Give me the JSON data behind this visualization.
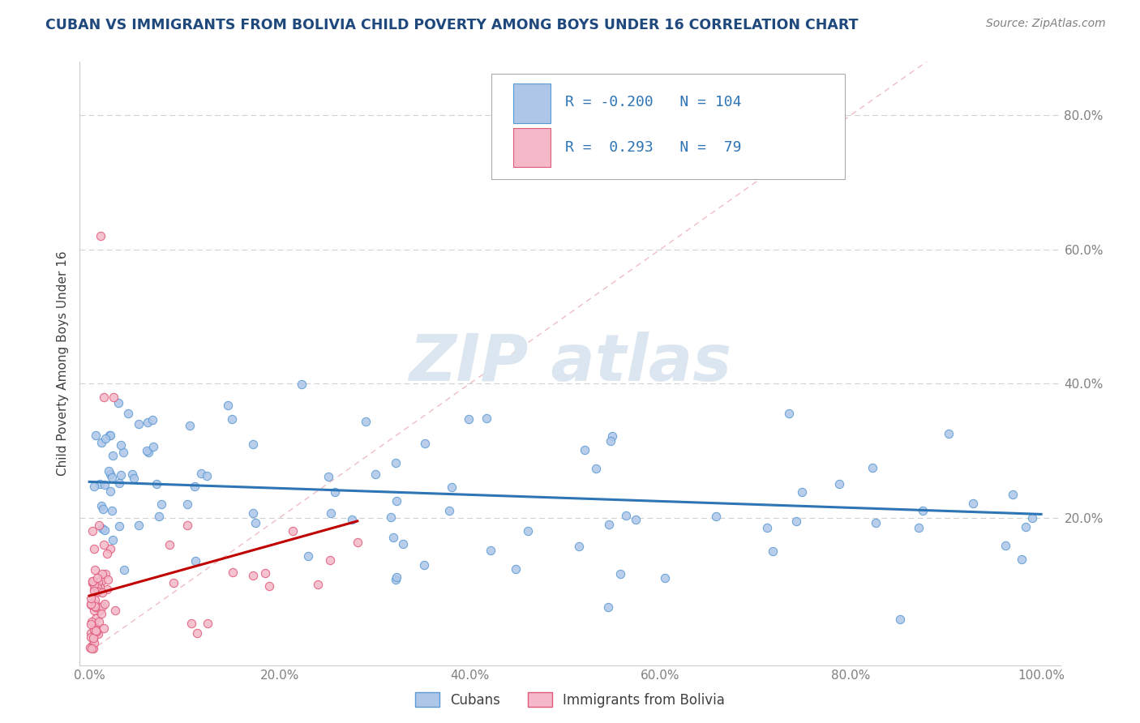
{
  "title": "CUBAN VS IMMIGRANTS FROM BOLIVIA CHILD POVERTY AMONG BOYS UNDER 16 CORRELATION CHART",
  "source": "Source: ZipAtlas.com",
  "ylabel": "Child Poverty Among Boys Under 16",
  "xlim": [
    -0.01,
    1.02
  ],
  "ylim": [
    -0.02,
    0.88
  ],
  "x_tick_labels": [
    "0.0%",
    "20.0%",
    "40.0%",
    "60.0%",
    "80.0%",
    "100.0%"
  ],
  "x_tick_vals": [
    0,
    0.2,
    0.4,
    0.6,
    0.8,
    1.0
  ],
  "y_tick_labels": [
    "20.0%",
    "40.0%",
    "60.0%",
    "80.0%"
  ],
  "y_tick_vals": [
    0.2,
    0.4,
    0.6,
    0.8
  ],
  "legend_label1": "Cubans",
  "legend_label2": "Immigrants from Bolivia",
  "legend_r1": "-0.200",
  "legend_n1": "104",
  "legend_r2": " 0.293",
  "legend_n2": " 79",
  "color_cubans_fill": "#aec6e8",
  "color_cubans_edge": "#5b9bd5",
  "color_bolivia_fill": "#f4b8c8",
  "color_bolivia_edge": "#e05a7a",
  "color_trend_cubans": "#2e75b6",
  "color_trend_bolivia": "#c00000",
  "color_diag": "#e8a0a8",
  "title_color": "#1f497d",
  "source_color": "#808080",
  "axis_label_color": "#404040",
  "tick_color": "#808080",
  "grid_color": "#d0d0d0",
  "watermark_color": "#dce6f0"
}
